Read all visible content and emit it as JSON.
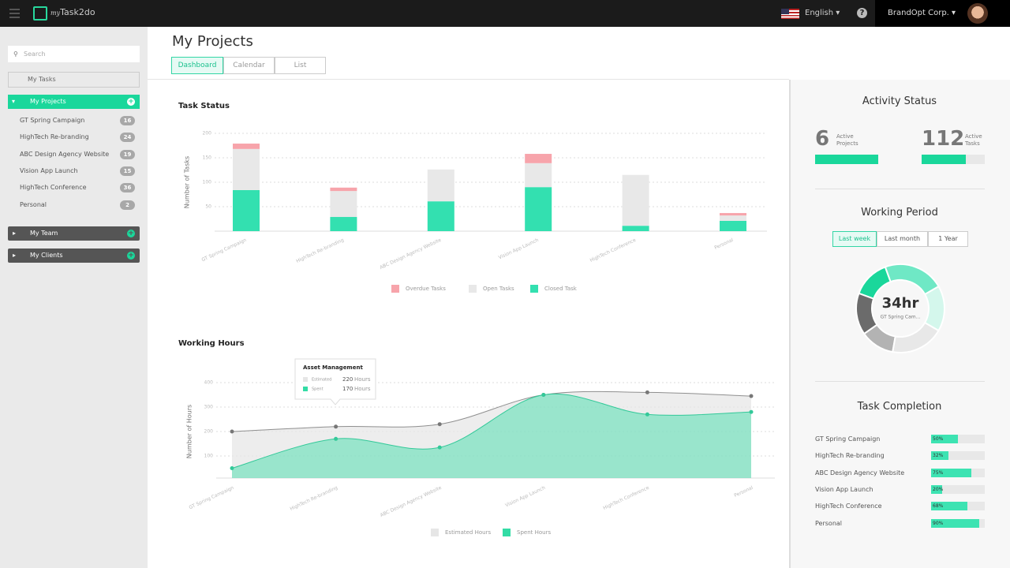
{
  "app": {
    "logo_prefix": "my",
    "logo_name": "Task2do",
    "language": "English",
    "company": "BrandOpt Corp."
  },
  "sidebar": {
    "search_placeholder": "Search",
    "my_tasks": "My Tasks",
    "my_projects": "My Projects",
    "projects": [
      {
        "name": "GT Spring Campaign",
        "count": 16
      },
      {
        "name": "HighTech Re-branding",
        "count": 24
      },
      {
        "name": "ABC Design Agency Website",
        "count": 19
      },
      {
        "name": "Vision App Launch",
        "count": 15
      },
      {
        "name": "HighTech Conference",
        "count": 36
      },
      {
        "name": "Personal",
        "count": 2
      }
    ],
    "my_team": "My Team",
    "my_clients": "My Clients"
  },
  "page": {
    "title": "My Projects",
    "tabs": [
      "Dashboard",
      "Calendar",
      "List"
    ]
  },
  "chart_data": [
    {
      "type": "bar",
      "stacked": true,
      "title": "Task Status",
      "y_label": "Number of Tasks",
      "categories": [
        "GT Spring Campaign",
        "HighTech Re-branding",
        "ABC Design Agency Website",
        "Vision App Launch",
        "HighTech Conference",
        "Personal"
      ],
      "series": [
        {
          "name": "Overdue Tasks",
          "color": "#f7a4ab",
          "values": [
            11,
            7,
            0,
            19,
            0,
            5
          ]
        },
        {
          "name": "Open Tasks",
          "color": "#e8e8e8",
          "values": [
            84,
            53,
            65,
            49,
            104,
            11
          ]
        },
        {
          "name": "Closed Task",
          "color": "#33e0b0",
          "values": [
            84,
            29,
            61,
            90,
            11,
            21
          ]
        }
      ],
      "ylim": [
        0,
        200
      ],
      "yticks": [
        50,
        100,
        150,
        200
      ],
      "grid": true,
      "legend": "bottom"
    },
    {
      "type": "area",
      "title": "Working Hours",
      "y_label": "Number of Hours",
      "categories": [
        "GT Spring Campaign",
        "HighTech Re-branding",
        "ABC Design Agency Website",
        "Vision App Launch",
        "HighTech Conference",
        "Personal"
      ],
      "series": [
        {
          "name": "Estimated Hours",
          "color": "#e6e6e6",
          "line_color": "#8f8f8f",
          "values": [
            200,
            220,
            230,
            350,
            360,
            345
          ]
        },
        {
          "name": "Spent Hours",
          "color": "#33dca5",
          "line_color": "#33c999",
          "values": [
            50,
            170,
            135,
            350,
            270,
            280
          ]
        }
      ],
      "ylim": [
        0,
        400
      ],
      "yticks": [
        100,
        200,
        300,
        400
      ],
      "grid": true,
      "legend": "bottom",
      "tooltip": {
        "title": "Asset Management",
        "rows": [
          {
            "name": "Estimated",
            "value": 220
          },
          {
            "name": "Spent",
            "value": 170
          }
        ],
        "unit": "Hours"
      }
    }
  ],
  "activity_status": {
    "title": "Activity Status",
    "items": [
      {
        "value": 6,
        "label": "Active Projects"
      },
      {
        "value": 112,
        "label": "Active Tasks"
      }
    ]
  },
  "working_period": {
    "title": "Working Period",
    "options": [
      "Last week",
      "Last month",
      "1 Year"
    ],
    "center_value": "34hr",
    "center_label": "GT Spring Cam..."
  },
  "task_completion": {
    "title": "Task Completion",
    "categories": [
      "GT Spring Campaign",
      "HighTech Re-branding",
      "ABC Design Agency Website",
      "Vision App Launch",
      "HighTech Conference",
      "Personal"
    ],
    "values": [
      50,
      32,
      75,
      20,
      68,
      90
    ],
    "value_labels": [
      "50%",
      "32%",
      "75%",
      "20%",
      "68%",
      "90%"
    ]
  }
}
